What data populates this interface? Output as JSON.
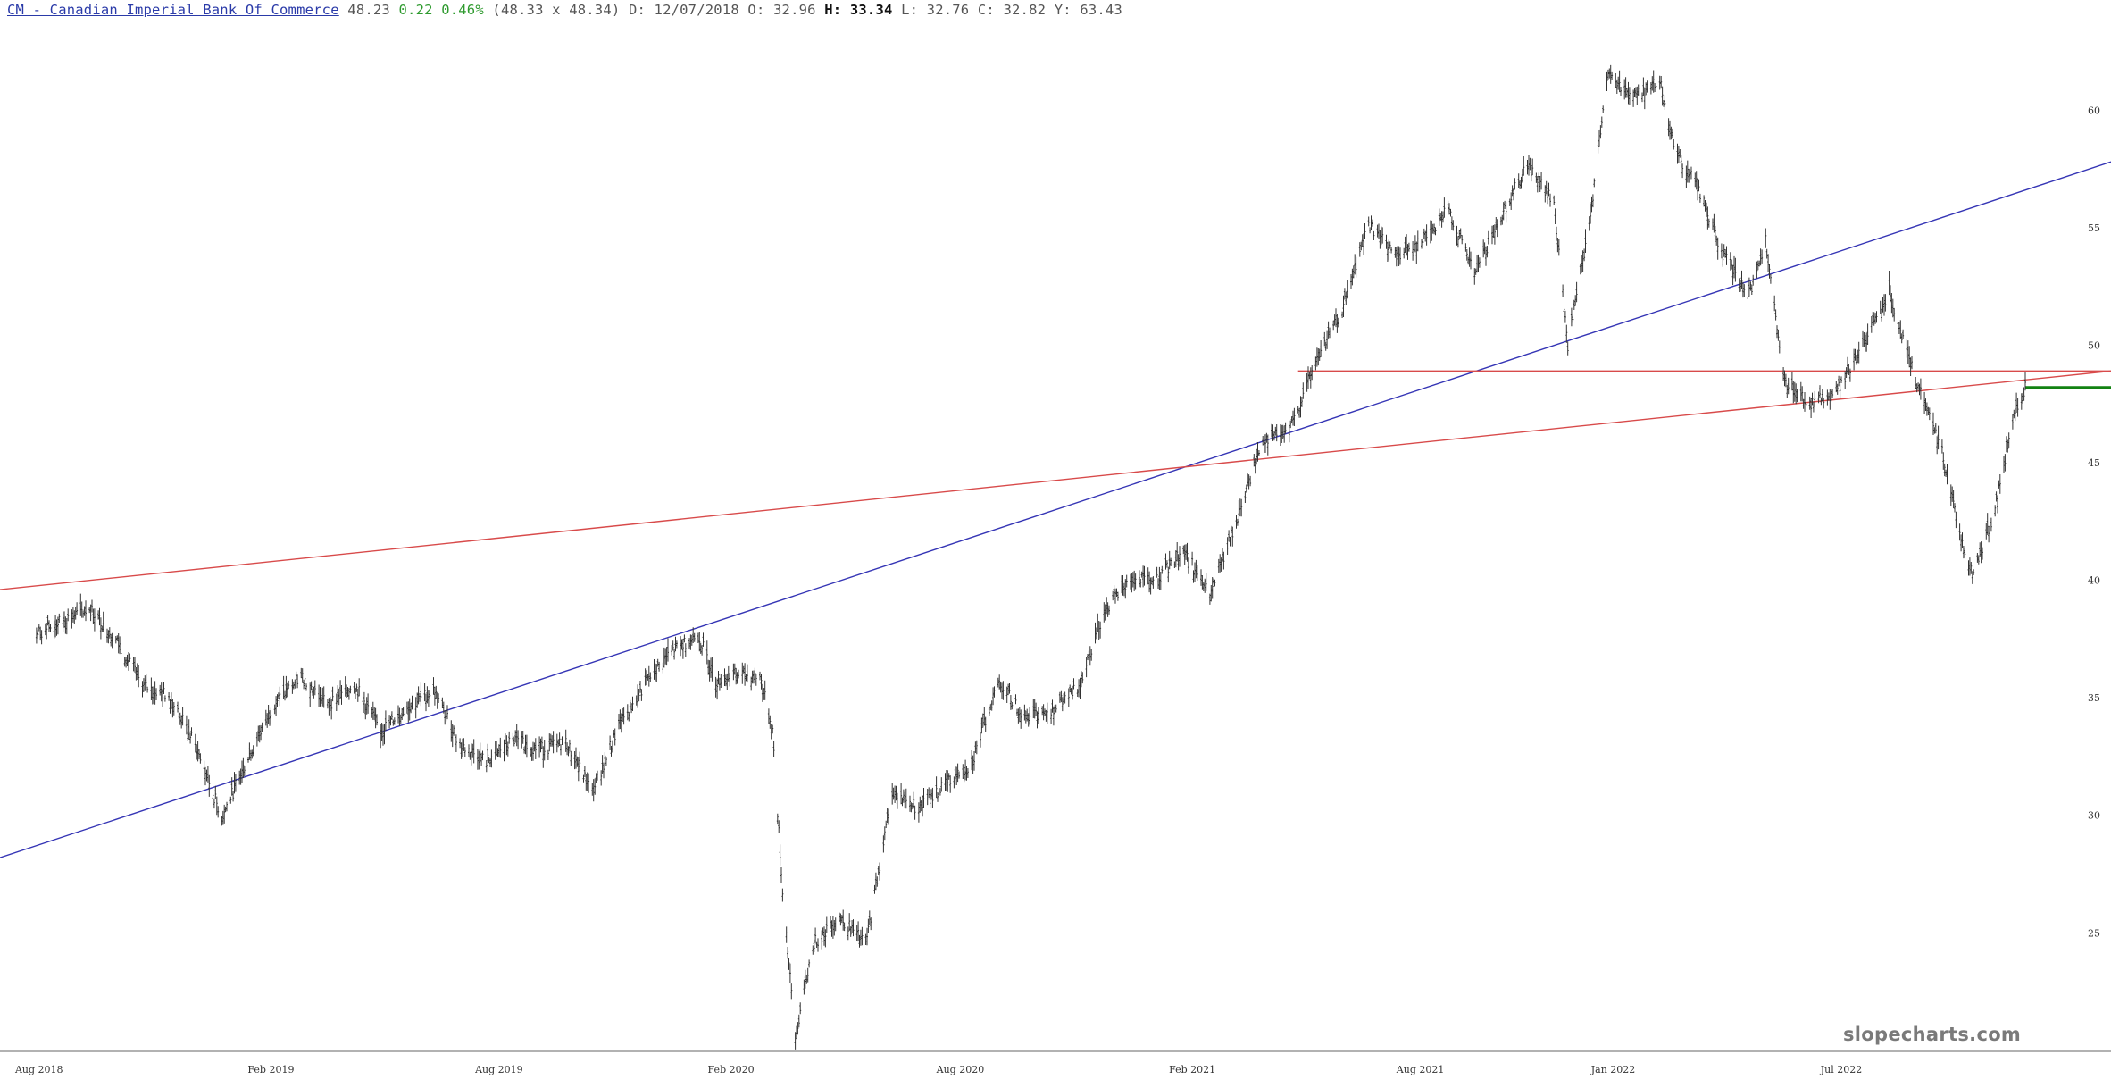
{
  "header": {
    "symbol_link": "CM - Canadian Imperial Bank Of Commerce",
    "last": "48.23",
    "change": "0.22",
    "change_pct": "0.46%",
    "bid_ask": "(48.33 x 48.34)",
    "date": "D: 12/07/2018",
    "open": "O: 32.96",
    "high_label": "H:",
    "high_value": "33.34",
    "low": "L: 32.76",
    "close": "C: 32.82",
    "y": "Y: 63.43"
  },
  "watermark": "slopecharts.com",
  "colors": {
    "price": "#333333",
    "blue_trendline": "#3535b5",
    "red_trendline": "#d84a4a",
    "green_level": "#128212",
    "axis": "#666666"
  },
  "chart_data": {
    "type": "line",
    "ylim": [
      20.3,
      64.0
    ],
    "y_ticks": [
      25,
      30,
      35,
      40,
      45,
      50,
      55,
      60
    ],
    "x_range": [
      "2018-07-01",
      "2023-01-31"
    ],
    "x_ticks": [
      {
        "date": "2018-08-01",
        "label": "Aug 2018"
      },
      {
        "date": "2019-02-01",
        "label": "Feb 2019"
      },
      {
        "date": "2019-08-01",
        "label": "Aug 2019"
      },
      {
        "date": "2020-02-01",
        "label": "Feb 2020"
      },
      {
        "date": "2020-08-01",
        "label": "Aug 2020"
      },
      {
        "date": "2021-02-01",
        "label": "Feb 2021"
      },
      {
        "date": "2021-08-01",
        "label": "Aug 2021"
      },
      {
        "date": "2022-01-01",
        "label": "Jan 2022"
      },
      {
        "date": "2022-07-01",
        "label": "Jul 2022"
      }
    ],
    "series": [
      {
        "points": [
          [
            "2018-07-30",
            37.7
          ],
          [
            "2018-08-20",
            38.3
          ],
          [
            "2018-09-10",
            38.8
          ],
          [
            "2018-10-01",
            37.5
          ],
          [
            "2018-10-22",
            35.5
          ],
          [
            "2018-11-12",
            35.1
          ],
          [
            "2018-12-03",
            33.0
          ],
          [
            "2018-12-24",
            29.9
          ],
          [
            "2019-01-14",
            32.5
          ],
          [
            "2019-02-04",
            34.8
          ],
          [
            "2019-02-25",
            35.9
          ],
          [
            "2019-03-18",
            34.7
          ],
          [
            "2019-04-08",
            35.6
          ],
          [
            "2019-04-29",
            33.6
          ],
          [
            "2019-05-20",
            34.6
          ],
          [
            "2019-06-10",
            35.3
          ],
          [
            "2019-07-01",
            33.0
          ],
          [
            "2019-07-22",
            32.3
          ],
          [
            "2019-08-12",
            33.2
          ],
          [
            "2019-09-02",
            32.8
          ],
          [
            "2019-09-23",
            33.1
          ],
          [
            "2019-10-14",
            31.0
          ],
          [
            "2019-11-04",
            33.8
          ],
          [
            "2019-11-25",
            35.6
          ],
          [
            "2019-12-16",
            37.0
          ],
          [
            "2020-01-06",
            37.7
          ],
          [
            "2020-01-20",
            35.7
          ],
          [
            "2020-02-03",
            36.0
          ],
          [
            "2020-02-24",
            35.9
          ],
          [
            "2020-03-05",
            33.6
          ],
          [
            "2020-03-12",
            27.5
          ],
          [
            "2020-03-23",
            20.5
          ],
          [
            "2020-04-06",
            24.5
          ],
          [
            "2020-04-27",
            25.7
          ],
          [
            "2020-05-18",
            24.5
          ],
          [
            "2020-06-08",
            31.0
          ],
          [
            "2020-06-29",
            30.3
          ],
          [
            "2020-07-20",
            31.3
          ],
          [
            "2020-08-10",
            32.2
          ],
          [
            "2020-08-31",
            35.7
          ],
          [
            "2020-09-21",
            34.2
          ],
          [
            "2020-10-12",
            34.5
          ],
          [
            "2020-11-02",
            35.4
          ],
          [
            "2020-11-23",
            38.7
          ],
          [
            "2020-12-14",
            40.0
          ],
          [
            "2021-01-04",
            40.0
          ],
          [
            "2021-01-25",
            41.3
          ],
          [
            "2021-02-15",
            39.3
          ],
          [
            "2021-03-08",
            42.5
          ],
          [
            "2021-03-29",
            46.0
          ],
          [
            "2021-04-19",
            46.3
          ],
          [
            "2021-05-10",
            49.3
          ],
          [
            "2021-05-31",
            51.5
          ],
          [
            "2021-06-21",
            55.2
          ],
          [
            "2021-07-12",
            53.8
          ],
          [
            "2021-08-02",
            54.4
          ],
          [
            "2021-08-23",
            55.8
          ],
          [
            "2021-09-13",
            53.0
          ],
          [
            "2021-10-04",
            55.5
          ],
          [
            "2021-10-25",
            57.7
          ],
          [
            "2021-11-15",
            56.0
          ],
          [
            "2021-11-26",
            50.0
          ],
          [
            "2021-12-13",
            55.0
          ],
          [
            "2021-12-27",
            61.5
          ],
          [
            "2022-01-17",
            60.6
          ],
          [
            "2022-02-07",
            61.2
          ],
          [
            "2022-02-21",
            58.0
          ],
          [
            "2022-03-07",
            57.0
          ],
          [
            "2022-03-28",
            54.0
          ],
          [
            "2022-04-18",
            52.0
          ],
          [
            "2022-05-02",
            54.5
          ],
          [
            "2022-05-16",
            48.5
          ],
          [
            "2022-06-06",
            47.5
          ],
          [
            "2022-06-27",
            48.0
          ],
          [
            "2022-07-18",
            50.0
          ],
          [
            "2022-08-08",
            52.3
          ],
          [
            "2022-08-29",
            48.5
          ],
          [
            "2022-09-19",
            45.5
          ],
          [
            "2022-10-03",
            42.0
          ],
          [
            "2022-10-13",
            40.2
          ],
          [
            "2022-10-31",
            43.0
          ],
          [
            "2022-11-14",
            46.8
          ],
          [
            "2022-11-24",
            48.2
          ]
        ]
      }
    ],
    "trendlines": [
      {
        "color_key": "blue_trendline",
        "from": [
          "2018-07-01",
          28.2
        ],
        "to": [
          "2023-01-31",
          57.8
        ]
      },
      {
        "color_key": "red_trendline",
        "from": [
          "2018-07-01",
          39.6
        ],
        "to": [
          "2023-01-31",
          48.9
        ]
      },
      {
        "color_key": "red_trendline",
        "from": [
          "2021-04-26",
          48.9
        ],
        "to": [
          "2023-01-31",
          48.9
        ]
      },
      {
        "color_key": "green_level",
        "from": [
          "2022-11-24",
          48.2
        ],
        "to": [
          "2023-01-31",
          48.2
        ]
      }
    ]
  }
}
